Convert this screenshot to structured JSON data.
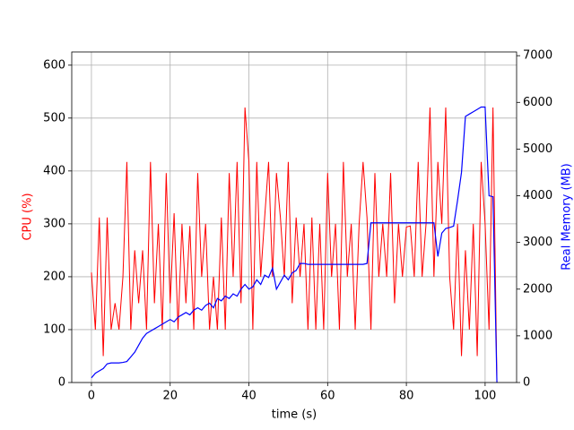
{
  "chart_data": {
    "type": "line",
    "xlabel": "time (s)",
    "ylabel": "CPU (%)",
    "y2label": "Real Memory (MB)",
    "x": [
      0,
      1,
      2,
      3,
      4,
      5,
      6,
      7,
      8,
      9,
      10,
      11,
      12,
      13,
      14,
      15,
      16,
      17,
      18,
      19,
      20,
      21,
      22,
      23,
      24,
      25,
      26,
      27,
      28,
      29,
      30,
      31,
      32,
      33,
      34,
      35,
      36,
      37,
      38,
      39,
      40,
      41,
      42,
      43,
      44,
      45,
      46,
      47,
      48,
      49,
      50,
      51,
      52,
      53,
      54,
      55,
      56,
      57,
      58,
      59,
      60,
      61,
      62,
      63,
      64,
      65,
      66,
      67,
      68,
      69,
      70,
      71,
      72,
      73,
      74,
      75,
      76,
      77,
      78,
      79,
      80,
      81,
      82,
      83,
      84,
      85,
      86,
      87,
      88,
      89,
      90,
      91,
      92,
      93,
      94,
      95,
      96,
      97,
      98,
      99,
      100,
      101,
      102,
      103
    ],
    "series": [
      {
        "name": "CPU (%)",
        "color": "#ff0000",
        "values": [
          208,
          100,
          312,
          50,
          312,
          100,
          150,
          100,
          200,
          417,
          100,
          250,
          150,
          250,
          100,
          417,
          150,
          300,
          100,
          396,
          150,
          320,
          100,
          300,
          150,
          296,
          100,
          396,
          200,
          300,
          100,
          200,
          100,
          312,
          100,
          396,
          200,
          417,
          150,
          520,
          417,
          100,
          417,
          200,
          312,
          417,
          200,
          396,
          312,
          200,
          417,
          150,
          312,
          200,
          300,
          100,
          312,
          100,
          300,
          100,
          396,
          200,
          300,
          100,
          417,
          200,
          300,
          100,
          300,
          417,
          312,
          100,
          396,
          200,
          300,
          200,
          396,
          150,
          300,
          200,
          294,
          296,
          200,
          417,
          200,
          300,
          520,
          200,
          417,
          300,
          520,
          200,
          100,
          300,
          50,
          250,
          100,
          300,
          50,
          417,
          300,
          100,
          520,
          0
        ]
      },
      {
        "name": "Real Memory (MB)",
        "color": "#0000ff",
        "axis": "y2",
        "values": [
          100,
          200,
          250,
          300,
          400,
          420,
          420,
          420,
          430,
          450,
          550,
          650,
          800,
          950,
          1050,
          1100,
          1150,
          1200,
          1250,
          1300,
          1350,
          1300,
          1400,
          1450,
          1500,
          1450,
          1550,
          1600,
          1550,
          1650,
          1700,
          1600,
          1800,
          1750,
          1850,
          1800,
          1900,
          1850,
          2000,
          2100,
          2000,
          2050,
          2200,
          2100,
          2300,
          2250,
          2450,
          2000,
          2150,
          2300,
          2200,
          2350,
          2400,
          2550,
          2550,
          2530,
          2530,
          2530,
          2530,
          2530,
          2530,
          2530,
          2530,
          2530,
          2530,
          2530,
          2530,
          2530,
          2530,
          2530,
          2550,
          3420,
          3420,
          3420,
          3420,
          3420,
          3420,
          3420,
          3420,
          3420,
          3420,
          3420,
          3420,
          3420,
          3420,
          3420,
          3420,
          3420,
          2700,
          3200,
          3300,
          3320,
          3350,
          3900,
          4500,
          5700,
          5750,
          5800,
          5850,
          5900,
          5900,
          4000,
          3980,
          0
        ]
      }
    ],
    "xlim": [
      -5,
      108
    ],
    "xticks": [
      0,
      20,
      40,
      60,
      80,
      100
    ],
    "ylim": [
      0,
      625
    ],
    "yticks": [
      0,
      100,
      200,
      300,
      400,
      500,
      600
    ],
    "y2lim": [
      0,
      7080
    ],
    "y2ticks": [
      0,
      1000,
      2000,
      3000,
      4000,
      5000,
      6000,
      7000
    ],
    "grid": true
  }
}
